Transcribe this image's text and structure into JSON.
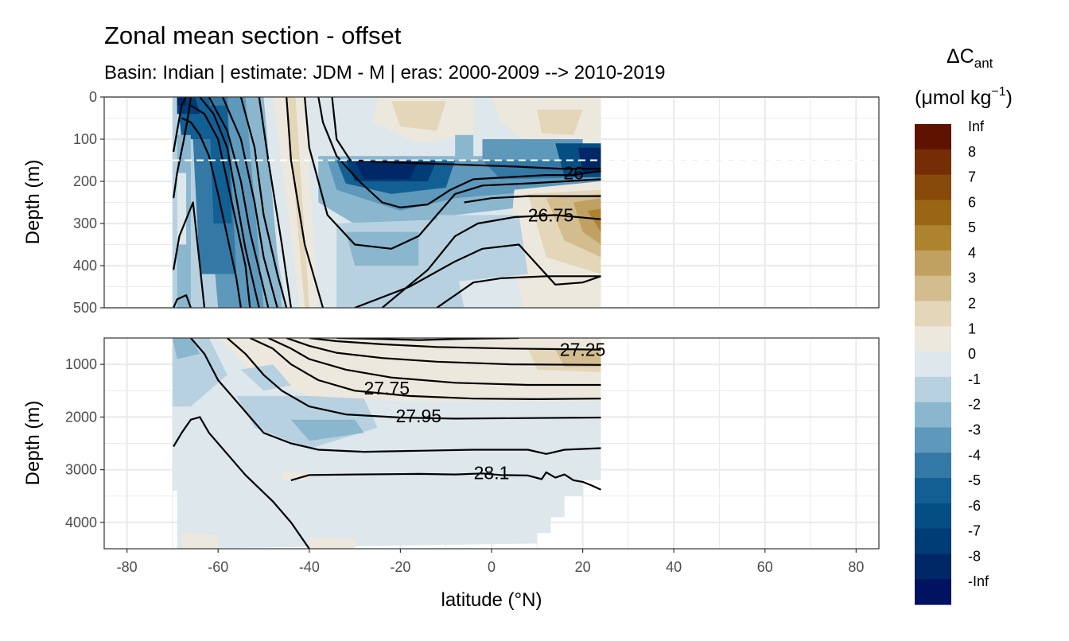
{
  "chart_data": {
    "type": "heatmap",
    "subtype": "filled contour section with isopycnal contour lines",
    "title": "Zonal mean section - offset",
    "subtitle": "Basin: Indian | estimate: JDM - M | eras: 2000-2009 --> 2010-2019",
    "xlabel": "latitude (°N)",
    "ylabel": "Depth (m)",
    "xlim": [
      -85,
      85
    ],
    "x_ticks": [
      -80,
      -60,
      -40,
      -20,
      0,
      20,
      40,
      60,
      80
    ],
    "x_tick_labels": [
      "-80",
      "-60",
      "-40",
      "-20",
      "0",
      "20",
      "40",
      "60",
      "80"
    ],
    "data_lat_range": [
      -70,
      24
    ],
    "panels": [
      {
        "name": "upper",
        "ylim": [
          500,
          0
        ],
        "y_ticks": [
          0,
          100,
          200,
          300,
          400,
          500
        ],
        "y_tick_labels": [
          "0",
          "100",
          "200",
          "300",
          "400",
          "500"
        ],
        "reference_line_depth": 150,
        "reference_line_style": "dashed white",
        "contour_labels": [
          {
            "text": "26",
            "lat": 18,
            "depth": 180
          },
          {
            "text": "26.75",
            "lat": 13,
            "depth": 280
          }
        ]
      },
      {
        "name": "lower",
        "ylim": [
          4500,
          500
        ],
        "y_ticks": [
          1000,
          2000,
          3000,
          4000
        ],
        "y_tick_labels": [
          "1000",
          "2000",
          "3000",
          "4000"
        ],
        "contour_labels": [
          {
            "text": "27.25",
            "lat": 20,
            "depth": 720
          },
          {
            "text": "27.75",
            "lat": -23,
            "depth": 1450
          },
          {
            "text": "27.95",
            "lat": -16,
            "depth": 1980
          },
          {
            "text": "28.1",
            "lat": 0,
            "depth": 3060
          }
        ]
      }
    ],
    "legend": {
      "title_line1": "ΔC",
      "title_sub": "ant",
      "title_line2": "(μmol kg",
      "title_sup": "−1",
      "title_close": ")",
      "placement": "right",
      "levels": [
        "Inf",
        "8",
        "7",
        "6",
        "5",
        "4",
        "3",
        "2",
        "1",
        "0",
        "-1",
        "-2",
        "-3",
        "-4",
        "-5",
        "-6",
        "-7",
        "-8",
        "-Inf"
      ],
      "colors": [
        "#601200",
        "#742d05",
        "#874a0b",
        "#9a6615",
        "#ae832f",
        "#c1a162",
        "#d3bd8e",
        "#e3d6b9",
        "#ede8dd",
        "#dde7ec",
        "#b7d1e0",
        "#8ab6ce",
        "#5e98bb",
        "#3479a5",
        "#125f94",
        "#054e84",
        "#003c75",
        "#002866",
        "#001260"
      ]
    }
  }
}
